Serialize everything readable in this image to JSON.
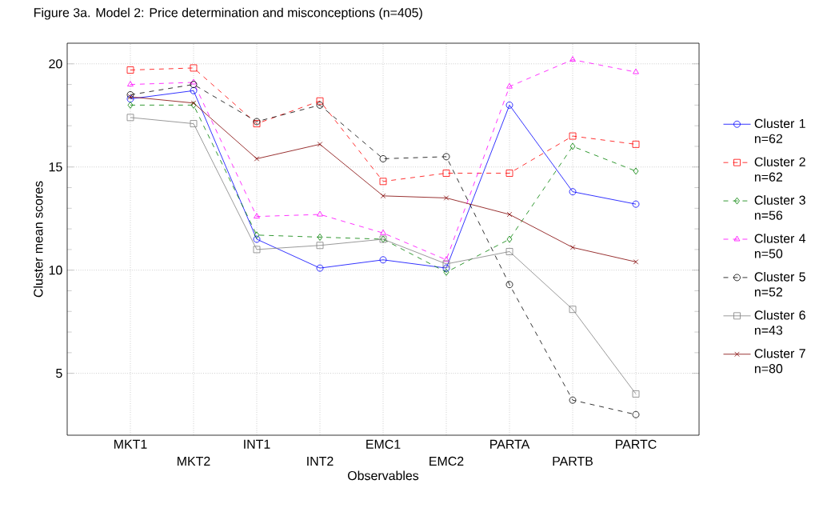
{
  "chart_data": {
    "type": "line",
    "title": "Figure 3a. Model 2: Price determination and misconceptions (n=405)",
    "xlabel": "Observables",
    "ylabel": "Cluster mean scores",
    "categories": [
      "MKT1",
      "MKT2",
      "INT1",
      "INT2",
      "EMC1",
      "EMC2",
      "PARTA",
      "PARTB",
      "PARTC"
    ],
    "ylim": [
      2,
      21
    ],
    "yticks": [
      5,
      10,
      15,
      20
    ],
    "grid": true,
    "legend": "right",
    "series": [
      {
        "name": "Cluster 1 n=62",
        "color": "#0000ff",
        "marker": "circle",
        "line_style": "solid",
        "values": [
          18.3,
          18.7,
          11.5,
          10.1,
          10.5,
          10.1,
          18.0,
          13.8,
          13.2
        ]
      },
      {
        "name": "Cluster 2 n=62",
        "color": "#ff0000",
        "marker": "square",
        "line_style": "dashed",
        "values": [
          19.7,
          19.8,
          17.1,
          18.2,
          14.3,
          14.7,
          14.7,
          16.5,
          16.1
        ]
      },
      {
        "name": "Cluster 3 n=56",
        "color": "#008000",
        "marker": "diamond",
        "line_style": "dashed",
        "values": [
          18.0,
          18.0,
          11.7,
          11.6,
          11.5,
          9.9,
          11.5,
          16.0,
          14.8
        ]
      },
      {
        "name": "Cluster 4 n=50",
        "color": "#ff00ff",
        "marker": "triangle",
        "line_style": "dashed",
        "values": [
          19.0,
          19.1,
          12.6,
          12.7,
          11.8,
          10.5,
          18.9,
          20.2,
          19.6
        ]
      },
      {
        "name": "Cluster 5 n=52",
        "color": "#000000",
        "marker": "circle",
        "line_style": "dashed",
        "values": [
          18.5,
          19.0,
          17.2,
          18.0,
          15.4,
          15.5,
          9.3,
          3.7,
          3.0
        ]
      },
      {
        "name": "Cluster 6 n=43",
        "color": "#808080",
        "marker": "square",
        "line_style": "solid",
        "values": [
          17.4,
          17.1,
          11.0,
          11.2,
          11.5,
          10.3,
          10.9,
          8.1,
          4.0
        ]
      },
      {
        "name": "Cluster 7 n=80",
        "color": "#800000",
        "marker": "cross",
        "line_style": "solid",
        "values": [
          18.4,
          18.1,
          15.4,
          16.1,
          13.6,
          13.5,
          12.7,
          11.1,
          10.4
        ]
      }
    ]
  }
}
